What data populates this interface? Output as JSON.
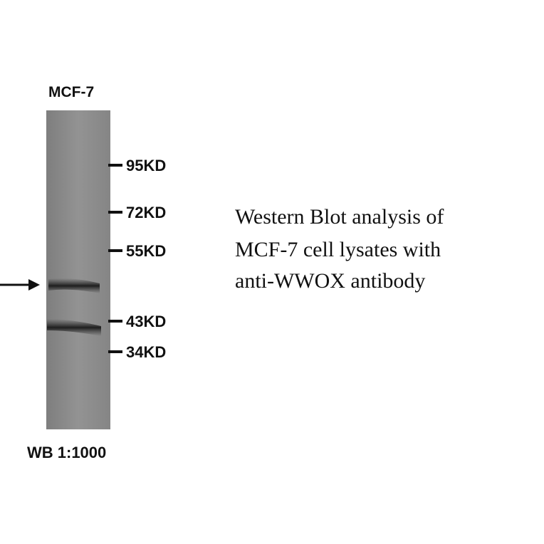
{
  "lane_label": "MCF-7",
  "markers": [
    "95KD",
    "72KD",
    "55KD",
    "43KD",
    "34KD"
  ],
  "caption": [
    "Western Blot analysis of",
    "MCF-7 cell lysates with",
    "anti-WWOX antibody"
  ],
  "footer": "WB 1:1000"
}
